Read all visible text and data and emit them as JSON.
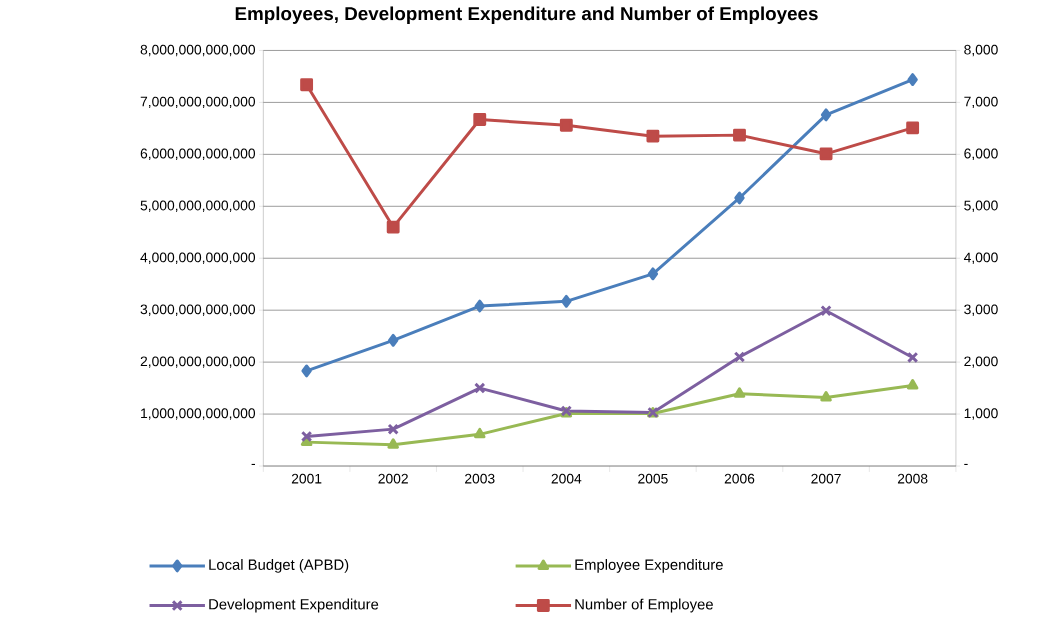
{
  "chart_data": {
    "type": "line",
    "title": "Employees, Development Expenditure and Number of Employees",
    "categories": [
      "2001",
      "2002",
      "2003",
      "2004",
      "2005",
      "2006",
      "2007",
      "2008"
    ],
    "series": [
      {
        "name": "Local Budget (APBD)",
        "color": "#4a7ebb",
        "marker": "diamond",
        "values": [
          1830000000000,
          2420000000000,
          3080000000000,
          3170000000000,
          3700000000000,
          5160000000000,
          6760000000000,
          7440000000000
        ]
      },
      {
        "name": "Employee Expenditure",
        "color": "#98b954",
        "marker": "triangle",
        "values": [
          460000000000,
          410000000000,
          610000000000,
          1010000000000,
          1010000000000,
          1390000000000,
          1320000000000,
          1550000000000
        ]
      },
      {
        "name": "Development Expenditure",
        "color": "#7d5fa0",
        "marker": "cross",
        "values": [
          570000000000,
          710000000000,
          1500000000000,
          1060000000000,
          1030000000000,
          2100000000000,
          2990000000000,
          2090000000000
        ]
      },
      {
        "name": "Number of Employee",
        "color": "#be4b48",
        "marker": "square",
        "axis": "y2",
        "values": [
          7340,
          4600,
          6670,
          6560,
          6350,
          6370,
          6010,
          6510
        ]
      }
    ],
    "ylim": [
      0,
      8000000000000
    ],
    "yticks": [
      {
        "value": 0,
        "label": "-"
      },
      {
        "value": 1000000000000,
        "label": "1,000,000,000,000"
      },
      {
        "value": 2000000000000,
        "label": "2,000,000,000,000"
      },
      {
        "value": 3000000000000,
        "label": "3,000,000,000,000"
      },
      {
        "value": 4000000000000,
        "label": "4,000,000,000,000"
      },
      {
        "value": 5000000000000,
        "label": "5,000,000,000,000"
      },
      {
        "value": 6000000000000,
        "label": "6,000,000,000,000"
      },
      {
        "value": 7000000000000,
        "label": "7,000,000,000,000"
      },
      {
        "value": 8000000000000,
        "label": "8,000,000,000,000"
      }
    ],
    "y2lim": [
      0,
      8000
    ],
    "y2ticks": [
      {
        "value": 0,
        "label": "-"
      },
      {
        "value": 1000,
        "label": "1,000"
      },
      {
        "value": 2000,
        "label": "2,000"
      },
      {
        "value": 3000,
        "label": "3,000"
      },
      {
        "value": 4000,
        "label": "4,000"
      },
      {
        "value": 5000,
        "label": "5,000"
      },
      {
        "value": 6000,
        "label": "6,000"
      },
      {
        "value": 7000,
        "label": "7,000"
      },
      {
        "value": 8000,
        "label": "8,000"
      }
    ],
    "grid": "y",
    "legend": "bottom",
    "line_style": "solid"
  }
}
